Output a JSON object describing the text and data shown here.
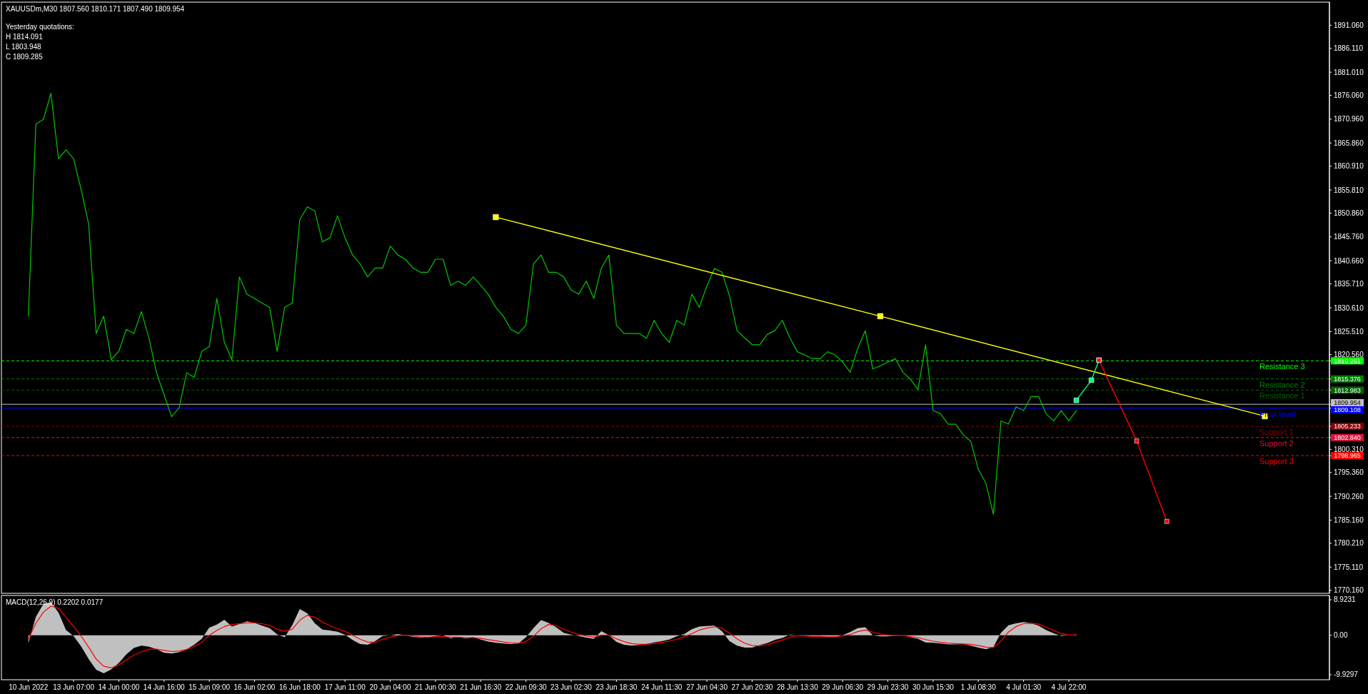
{
  "chart_data": [
    {
      "type": "line",
      "title": "XAUUSDm,M30  1807.560 1810.171 1807.490 1809.954",
      "annotations": [
        "Yesterday quotations:",
        "H 1814.091",
        "L 1803.948",
        "C 1809.285"
      ],
      "categories": [
        null,
        null,
        null,
        null,
        null,
        null,
        null,
        null,
        null,
        null,
        null,
        null,
        null,
        null,
        null,
        null,
        null,
        null,
        null,
        null,
        null,
        null,
        null,
        null,
        null,
        null,
        null,
        null,
        null,
        null,
        null,
        null,
        null,
        null,
        null,
        null,
        null,
        null,
        null,
        null,
        null,
        null,
        null,
        null,
        null,
        null,
        null,
        null,
        null,
        null,
        null,
        null,
        null,
        null,
        null,
        null,
        null,
        null,
        null,
        null,
        null,
        null,
        null,
        null,
        null,
        null,
        null,
        null,
        null,
        null,
        null,
        null,
        null,
        null,
        null,
        null,
        null,
        null,
        null,
        null,
        null,
        null,
        null,
        null,
        null,
        null,
        null,
        null,
        null,
        null,
        null,
        null,
        null,
        null,
        null,
        null,
        null,
        null,
        null,
        null,
        null,
        null,
        null,
        null,
        null,
        null,
        null,
        null,
        null,
        null,
        null,
        null,
        null,
        null,
        null,
        null,
        null,
        null,
        null,
        null,
        null,
        null,
        null,
        null,
        null,
        null,
        null,
        null,
        null,
        null,
        null,
        null,
        null,
        null,
        null,
        null,
        null,
        null,
        null,
        null,
        null,
        null,
        null,
        null,
        null,
        null,
        null,
        null,
        null,
        null,
        null,
        null,
        null,
        null,
        null,
        null,
        null,
        null,
        null,
        null,
        null,
        null,
        null,
        null,
        null,
        null,
        null,
        null,
        null,
        null,
        null,
        null,
        null,
        null,
        null,
        null
      ],
      "ylim": [
        1769.5,
        1896
      ],
      "yticks": [
        {
          "value": 1891.06,
          "label": "1891.060"
        },
        {
          "value": 1886.11,
          "label": "1886.110"
        },
        {
          "value": 1881.01,
          "label": "1881.010"
        },
        {
          "value": 1876.06,
          "label": "1876.060"
        },
        {
          "value": 1870.96,
          "label": "1870.960"
        },
        {
          "value": 1865.86,
          "label": "1865.860"
        },
        {
          "value": 1860.91,
          "label": "1860.910"
        },
        {
          "value": 1855.81,
          "label": "1855.810"
        },
        {
          "value": 1850.86,
          "label": "1850.860"
        },
        {
          "value": 1845.76,
          "label": "1845.760"
        },
        {
          "value": 1840.66,
          "label": "1840.660"
        },
        {
          "value": 1835.71,
          "label": "1835.710"
        },
        {
          "value": 1830.61,
          "label": "1830.610"
        },
        {
          "value": 1825.51,
          "label": "1825.510"
        },
        {
          "value": 1820.56,
          "label": "1820.560"
        },
        {
          "value": 1819.251,
          "label": "1819.251"
        },
        {
          "value": 1815.376,
          "label": "1815.376"
        },
        {
          "value": 1812.983,
          "label": "1812.983"
        },
        {
          "value": 1809.954,
          "label": "1809.954"
        },
        {
          "value": 1809.108,
          "label": "1809.108"
        },
        {
          "value": 1805.233,
          "label": "1805.233"
        },
        {
          "value": 1802.84,
          "label": "1802.840"
        },
        {
          "value": 1798.965,
          "label": "1798.965"
        },
        {
          "value": 1800.31,
          "label": "1800.310"
        },
        {
          "value": 1795.36,
          "label": "1795.360"
        },
        {
          "value": 1790.26,
          "label": "1790.260"
        },
        {
          "value": 1785.16,
          "label": "1785.160"
        },
        {
          "value": 1780.21,
          "label": "1780.210"
        },
        {
          "value": 1775.11,
          "label": "1775.110"
        },
        {
          "value": 1770.16,
          "label": "1770.160"
        }
      ],
      "tick_labels": "y",
      "ref_lines": [
        {
          "axis": "y",
          "value": 1819.251,
          "label": "Resistance 3",
          "color": "#00ff00",
          "line_style": "dashed"
        },
        {
          "axis": "y",
          "value": 1815.376,
          "label": "Resistance 2",
          "color": "#008000",
          "line_style": "dashed"
        },
        {
          "axis": "y",
          "value": 1812.983,
          "label": "Resistance 1",
          "color": "#006400",
          "line_style": "dashed"
        },
        {
          "axis": "y",
          "value": 1809.954,
          "label": null,
          "color": "#c0c0c0",
          "line_style": "solid"
        },
        {
          "axis": "y",
          "value": 1809.108,
          "label": "Pivot level",
          "color": "#0000ff",
          "line_style": "solid"
        },
        {
          "axis": "y",
          "value": 1805.233,
          "label": "Support 1",
          "color": "#8b0000",
          "line_style": "dashed"
        },
        {
          "axis": "y",
          "value": 1802.84,
          "label": "Support 2",
          "color": "#dc143c",
          "line_style": "dashed"
        },
        {
          "axis": "y",
          "value": 1798.965,
          "label": "Support 3",
          "color": "#ff0000",
          "line_style": "dashed"
        }
      ],
      "series": [
        {
          "color": "#00c800",
          "values": [
            null,
            null,
            null,
            1828.8,
            1869.9,
            1870.9,
            1876.5,
            1862.5,
            1864.4,
            1862.5,
            1855.9,
            1848.5,
            1825.1,
            1828.8,
            1819.5,
            1821.3,
            1826.0,
            1825.1,
            1829.8,
            1824.1,
            1816.7,
            1812.0,
            1807.3,
            1809.2,
            1816.7,
            1815.7,
            1821.3,
            1822.3,
            1832.6,
            1823.2,
            1819.5,
            1837.2,
            1833.5,
            1832.6,
            1831.6,
            1830.7,
            1821.3,
            1830.7,
            1831.6,
            1849.4,
            1852.2,
            1851.3,
            1844.7,
            1845.6,
            1850.3,
            1845.6,
            1841.9,
            1840.0,
            1837.2,
            1839.1,
            1839.1,
            1843.8,
            1841.9,
            1841.0,
            1839.1,
            1838.2,
            1838.2,
            1841.0,
            1841.0,
            1835.4,
            1836.3,
            1835.4,
            1837.2,
            1835.4,
            1833.5,
            1830.7,
            1828.8,
            1826.0,
            1825.1,
            1826.9,
            1840.0,
            1841.9,
            1838.2,
            1838.2,
            1837.2,
            1834.4,
            1833.5,
            1836.3,
            1832.6,
            1839.1,
            1841.9,
            1826.9,
            1825.1,
            1825.1,
            1825.1,
            1824.1,
            1827.9,
            1825.1,
            1823.2,
            1827.9,
            1826.9,
            1833.5,
            1830.7,
            1835.3,
            1839.0,
            1838.2,
            1833.1,
            1825.7,
            1824.2,
            1822.7,
            1822.7,
            1824.9,
            1825.7,
            1827.9,
            1824.2,
            1821.2,
            1820.5,
            1819.7,
            1819.7,
            1821.2,
            1820.5,
            1819.0,
            1816.8,
            1821.9,
            1825.7,
            1817.5,
            1818.2,
            1819.0,
            1819.7,
            1816.8,
            1815.3,
            1813.1,
            1822.7,
            1808.6,
            1807.9,
            1805.7,
            1805.7,
            1803.4,
            1802.0,
            1796.0,
            1793.1,
            1786.4,
            1806.4,
            1805.7,
            1809.4,
            1808.6,
            1811.6,
            1811.6,
            1807.9,
            1806.4,
            1808.6,
            1806.4,
            1808.6,
            null,
            null,
            null,
            null,
            null,
            null,
            null,
            null,
            null,
            null,
            null,
            null,
            null,
            null,
            null,
            null,
            null,
            null,
            null,
            null,
            null,
            null,
            null,
            null,
            null,
            null,
            null,
            null,
            null,
            null,
            null,
            null,
            null
          ]
        },
        {
          "color": "#ffff00",
          "marker": "square",
          "values": [
            null,
            null,
            null,
            null,
            null,
            null,
            null,
            null,
            null,
            null,
            null,
            null,
            null,
            null,
            null,
            null,
            null,
            null,
            null,
            null,
            null,
            null,
            null,
            null,
            null,
            null,
            null,
            null,
            null,
            null,
            null,
            null,
            null,
            null,
            null,
            null,
            null,
            null,
            null,
            null,
            null,
            null,
            null,
            null,
            null,
            null,
            null,
            null,
            null,
            null,
            null,
            null,
            null,
            null,
            null,
            null,
            null,
            null,
            null,
            null,
            null,
            null,
            null,
            null,
            null,
            1850.0,
            null,
            null,
            null,
            null,
            null,
            null,
            null,
            null,
            null,
            null,
            null,
            null,
            null,
            null,
            null,
            null,
            null,
            null,
            null,
            null,
            null,
            null,
            null,
            null,
            null,
            null,
            null,
            null,
            null,
            null,
            null,
            null,
            null,
            null,
            null,
            null,
            null,
            null,
            null,
            null,
            null,
            null,
            null,
            null,
            null,
            null,
            null,
            null,
            null,
            null,
            1828.8,
            null,
            null,
            null,
            null,
            null,
            null,
            null,
            null,
            null,
            null,
            null,
            null,
            null,
            null,
            null,
            null,
            null,
            null,
            null,
            null,
            null,
            null,
            null,
            null,
            null,
            null,
            null,
            null,
            null,
            null,
            null,
            null,
            null,
            null,
            null,
            null,
            null,
            null,
            null,
            null,
            null,
            null,
            null,
            null,
            null,
            null,
            null,
            null,
            null,
            null,
            1807.4,
            null,
            null,
            null,
            null,
            null,
            null,
            null,
            null
          ]
        },
        {
          "color": "#00ff80",
          "marker": "square",
          "values": [
            null,
            null,
            null,
            null,
            null,
            null,
            null,
            null,
            null,
            null,
            null,
            null,
            null,
            null,
            null,
            null,
            null,
            null,
            null,
            null,
            null,
            null,
            null,
            null,
            null,
            null,
            null,
            null,
            null,
            null,
            null,
            null,
            null,
            null,
            null,
            null,
            null,
            null,
            null,
            null,
            null,
            null,
            null,
            null,
            null,
            null,
            null,
            null,
            null,
            null,
            null,
            null,
            null,
            null,
            null,
            null,
            null,
            null,
            null,
            null,
            null,
            null,
            null,
            null,
            null,
            null,
            null,
            null,
            null,
            null,
            null,
            null,
            null,
            null,
            null,
            null,
            null,
            null,
            null,
            null,
            null,
            null,
            null,
            null,
            null,
            null,
            null,
            null,
            null,
            null,
            null,
            null,
            null,
            null,
            null,
            null,
            null,
            null,
            null,
            null,
            null,
            null,
            null,
            null,
            null,
            null,
            null,
            null,
            null,
            null,
            null,
            null,
            null,
            null,
            null,
            null,
            null,
            null,
            null,
            null,
            null,
            null,
            null,
            null,
            null,
            null,
            null,
            null,
            null,
            null,
            null,
            null,
            null,
            null,
            null,
            null,
            null,
            null,
            null,
            null,
            null,
            null,
            1810.8,
            null,
            1815.1,
            1819.4,
            null,
            null,
            null,
            null,
            null,
            null,
            null,
            null,
            null,
            null,
            null,
            null,
            null,
            null,
            null,
            null,
            null,
            null,
            null,
            null,
            null,
            null,
            null,
            null,
            null,
            null,
            null,
            null,
            null,
            null
          ]
        },
        {
          "color": "#ff0000",
          "marker": "square",
          "values": [
            null,
            null,
            null,
            null,
            null,
            null,
            null,
            null,
            null,
            null,
            null,
            null,
            null,
            null,
            null,
            null,
            null,
            null,
            null,
            null,
            null,
            null,
            null,
            null,
            null,
            null,
            null,
            null,
            null,
            null,
            null,
            null,
            null,
            null,
            null,
            null,
            null,
            null,
            null,
            null,
            null,
            null,
            null,
            null,
            null,
            null,
            null,
            null,
            null,
            null,
            null,
            null,
            null,
            null,
            null,
            null,
            null,
            null,
            null,
            null,
            null,
            null,
            null,
            null,
            null,
            null,
            null,
            null,
            null,
            null,
            null,
            null,
            null,
            null,
            null,
            null,
            null,
            null,
            null,
            null,
            null,
            null,
            null,
            null,
            null,
            null,
            null,
            null,
            null,
            null,
            null,
            null,
            null,
            null,
            null,
            null,
            null,
            null,
            null,
            null,
            null,
            null,
            null,
            null,
            null,
            null,
            null,
            null,
            null,
            null,
            null,
            null,
            null,
            null,
            null,
            null,
            null,
            null,
            null,
            null,
            null,
            null,
            null,
            null,
            null,
            null,
            null,
            null,
            null,
            null,
            null,
            null,
            null,
            null,
            null,
            null,
            null,
            null,
            null,
            null,
            null,
            null,
            null,
            null,
            null,
            1819.4,
            null,
            null,
            null,
            null,
            1802.1,
            null,
            null,
            null,
            1784.9,
            null,
            null,
            null,
            null,
            null,
            null,
            null,
            null,
            null,
            null,
            null,
            null,
            null,
            null,
            null,
            null,
            null,
            null,
            null,
            null,
            null
          ]
        }
      ]
    },
    {
      "type": "line",
      "title": "MACD(12,26,9) 0.2202 0.0177",
      "categories": [
        null,
        null,
        null,
        "10 Jun 2022",
        null,
        null,
        null,
        null,
        null,
        "13 Jun 07:00",
        null,
        null,
        null,
        null,
        null,
        "14 Jun 00:00",
        null,
        null,
        null,
        null,
        null,
        "14 Jun 16:00",
        null,
        null,
        null,
        null,
        null,
        "15 Jun 09:00",
        null,
        null,
        null,
        null,
        null,
        "16 Jun 02:00",
        null,
        null,
        null,
        null,
        null,
        "16 Jun 18:00",
        null,
        null,
        null,
        null,
        null,
        "17 Jun 11:00",
        null,
        null,
        null,
        null,
        null,
        "20 Jun 04:00",
        null,
        null,
        null,
        null,
        null,
        "21 Jun 00:30",
        null,
        null,
        null,
        null,
        null,
        "21 Jun 16:30",
        null,
        null,
        null,
        null,
        null,
        "22 Jun 09:30",
        null,
        null,
        null,
        null,
        null,
        "23 Jun 02:30",
        null,
        null,
        null,
        null,
        null,
        "23 Jun 18:30",
        null,
        null,
        null,
        null,
        null,
        "24 Jun 11:30",
        null,
        null,
        null,
        null,
        null,
        "27 Jun 04:30",
        null,
        null,
        null,
        null,
        null,
        "27 Jun 20:30",
        null,
        null,
        null,
        null,
        null,
        "28 Jun 13:30",
        null,
        null,
        null,
        null,
        null,
        "29 Jun 06:30",
        null,
        null,
        null,
        null,
        null,
        "29 Jun 23:30",
        null,
        null,
        null,
        null,
        null,
        "30 Jun 15:30",
        null,
        null,
        null,
        null,
        null,
        "1 Jul 08:30",
        null,
        null,
        null,
        null,
        null,
        "4 Jul 01:30",
        null,
        null,
        null,
        null,
        null,
        "4 Jul 22:00",
        null,
        null,
        null,
        null,
        null,
        null,
        null,
        null,
        null,
        null,
        null,
        null,
        null,
        null,
        null,
        null,
        null,
        null,
        null,
        null,
        null,
        null,
        null,
        null,
        null,
        null,
        null,
        null,
        null,
        null,
        null,
        null,
        null,
        null
      ],
      "ylim": [
        -11.2,
        10.0
      ],
      "yticks": [
        8.9231,
        {
          "value": 0,
          "label": "0.00"
        },
        -9.9297
      ],
      "series": [
        {
          "type": "area",
          "color": "#c0c0c0",
          "values": [
            null,
            null,
            null,
            -2.0,
            4.6,
            7.9,
            8.3,
            5.7,
            1.3,
            -0.2,
            -2.8,
            -6.0,
            -8.7,
            -9.6,
            -8.6,
            -7.0,
            -4.8,
            -3.2,
            -2.6,
            -2.9,
            -3.5,
            -4.4,
            -4.6,
            -4.3,
            -3.5,
            -2.4,
            -0.9,
            1.9,
            2.7,
            3.9,
            2.2,
            2.8,
            3.5,
            3.1,
            2.4,
            1.8,
            0.2,
            -0.5,
            2.5,
            6.6,
            5.5,
            3.0,
            1.4,
            1.2,
            0.9,
            0.1,
            -1.2,
            -2.2,
            -2.4,
            -1.5,
            -0.2,
            0.0,
            0.3,
            0.0,
            -0.4,
            -0.6,
            -0.5,
            -0.2,
            0.0,
            -0.8,
            -0.4,
            -0.8,
            -0.5,
            -1.1,
            -1.6,
            -1.9,
            -2.1,
            -2.2,
            -2.1,
            -0.5,
            1.8,
            3.8,
            3.1,
            2.0,
            0.6,
            0.1,
            -0.2,
            -0.6,
            -0.9,
            1.0,
            0.0,
            -1.7,
            -2.4,
            -2.6,
            -2.5,
            -2.2,
            -1.8,
            -1.5,
            -1.1,
            -0.3,
            0.3,
            1.5,
            2.2,
            2.3,
            2.4,
            1.0,
            -1.5,
            -2.6,
            -3.1,
            -3.1,
            -2.5,
            -2.0,
            -1.2,
            -0.7,
            0.1,
            0.0,
            -0.2,
            -0.3,
            -0.4,
            -0.4,
            -0.4,
            0.0,
            0.8,
            1.8,
            2.0,
            0.0,
            -0.3,
            -0.3,
            -0.1,
            0.0,
            -0.5,
            -0.9,
            -1.8,
            -1.9,
            -2.1,
            -2.3,
            -2.3,
            -2.2,
            -2.6,
            -3.1,
            -3.5,
            -3.0,
            0.6,
            2.5,
            3.0,
            3.3,
            3.0,
            2.4,
            1.3,
            0.5,
            -0.2,
            0.0,
            0.2,
            null,
            null,
            null,
            null,
            null,
            null,
            null,
            null,
            null,
            null,
            null,
            null,
            null,
            null,
            null,
            null,
            null,
            null,
            null,
            null,
            null,
            null,
            null,
            null,
            null,
            null,
            null,
            null,
            null,
            null,
            null,
            null,
            null
          ]
        },
        {
          "color": "#ff0000",
          "values": [
            null,
            null,
            null,
            -1.0,
            3.0,
            5.8,
            7.3,
            6.8,
            4.5,
            2.2,
            -0.2,
            -3.0,
            -6.0,
            -7.8,
            -8.2,
            -7.5,
            -6.2,
            -5.0,
            -4.2,
            -3.5,
            -3.5,
            -3.8,
            -4.1,
            -4.0,
            -3.6,
            -2.8,
            -1.8,
            0.0,
            1.2,
            2.2,
            2.7,
            2.9,
            3.1,
            3.1,
            2.9,
            2.5,
            1.5,
            1.0,
            1.5,
            3.8,
            5.0,
            4.5,
            3.3,
            2.4,
            1.6,
            1.0,
            0.0,
            -1.0,
            -1.7,
            -1.8,
            -1.0,
            -0.5,
            -0.1,
            0.0,
            -0.2,
            -0.4,
            -0.5,
            -0.4,
            -0.3,
            -0.5,
            -0.5,
            -0.6,
            -0.6,
            -0.8,
            -1.1,
            -1.4,
            -1.7,
            -1.9,
            -2.0,
            -1.6,
            -0.3,
            1.6,
            2.7,
            2.4,
            1.5,
            0.8,
            0.2,
            -0.2,
            -0.5,
            0.0,
            0.0,
            -0.9,
            -1.6,
            -2.1,
            -2.3,
            -2.3,
            -2.1,
            -1.8,
            -1.5,
            -1.0,
            -0.4,
            0.4,
            1.3,
            1.8,
            2.1,
            1.8,
            0.5,
            -0.9,
            -2.0,
            -2.6,
            -2.7,
            -2.4,
            -1.8,
            -1.2,
            -0.5,
            -0.2,
            -0.2,
            -0.3,
            -0.3,
            -0.4,
            -0.4,
            -0.2,
            0.2,
            0.9,
            1.3,
            0.8,
            0.3,
            0.0,
            -0.1,
            -0.1,
            -0.3,
            -0.6,
            -1.1,
            -1.5,
            -1.8,
            -2.0,
            -2.1,
            -2.2,
            -2.3,
            -2.6,
            -3.0,
            -3.1,
            -1.5,
            0.8,
            2.2,
            2.9,
            3.0,
            2.8,
            2.0,
            1.2,
            0.4,
            0.1,
            0.0,
            null,
            null,
            null,
            null,
            null,
            null,
            null,
            null,
            null,
            null,
            null,
            null,
            null,
            null,
            null,
            null,
            null,
            null,
            null,
            null,
            null,
            null,
            null,
            null,
            null,
            null,
            null,
            null,
            null,
            null,
            null,
            null,
            null
          ]
        }
      ]
    }
  ]
}
